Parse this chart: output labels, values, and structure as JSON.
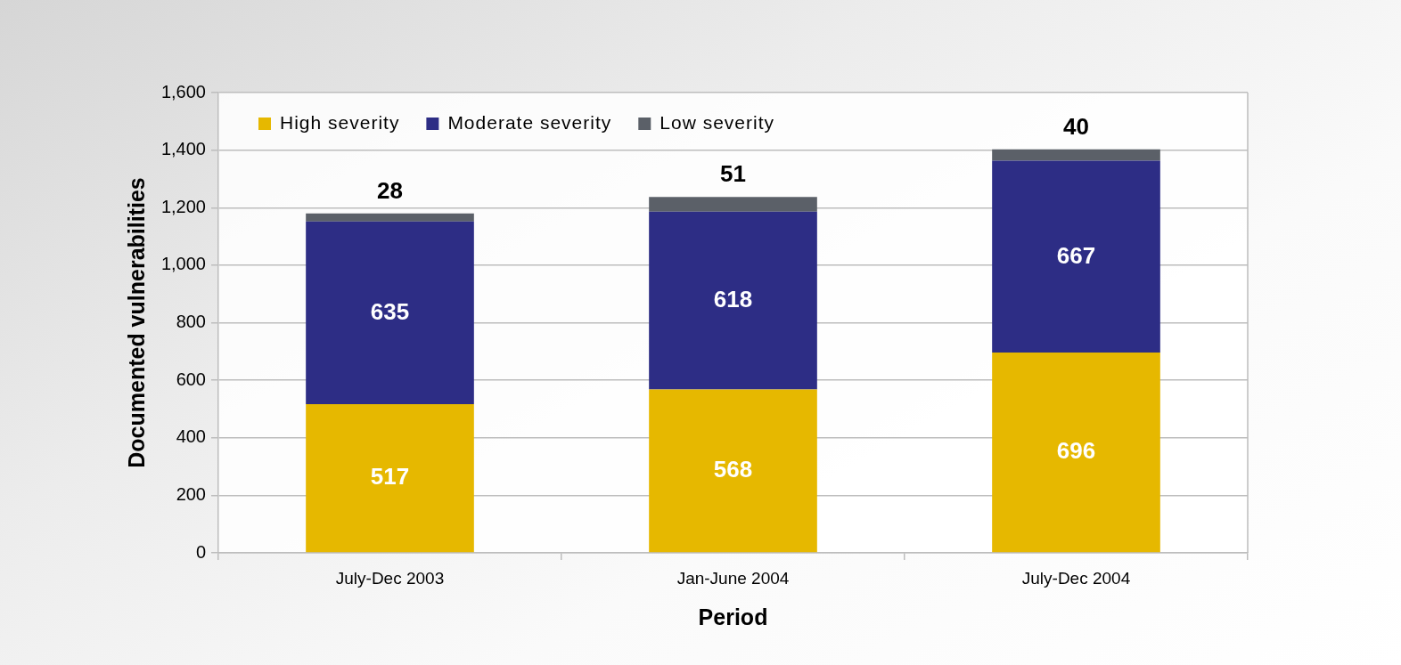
{
  "chart_data": {
    "type": "bar",
    "xlabel": "Period",
    "ylabel": "Documented vulnerabilities",
    "categories": [
      "July-Dec 2003",
      "Jan-June 2004",
      "July-Dec 2004"
    ],
    "series": [
      {
        "name": "High severity",
        "color": "#e6b800",
        "values": [
          517,
          568,
          696
        ]
      },
      {
        "name": "Moderate severity",
        "color": "#2d2d85",
        "values": [
          635,
          618,
          667
        ]
      },
      {
        "name": "Low severity",
        "color": "#5b6068",
        "values": [
          28,
          51,
          40
        ]
      }
    ],
    "stacked": true,
    "ylim": [
      0,
      1600
    ],
    "yticks": [
      0,
      200,
      400,
      600,
      800,
      {
        "value": 1000,
        "label": "1,000"
      },
      {
        "value": 1200,
        "label": "1,200"
      },
      {
        "value": 1400,
        "label": "1,400"
      },
      {
        "value": 1600,
        "label": "1,600"
      }
    ],
    "grid": "y",
    "legend": "top left",
    "data_labels": true
  }
}
